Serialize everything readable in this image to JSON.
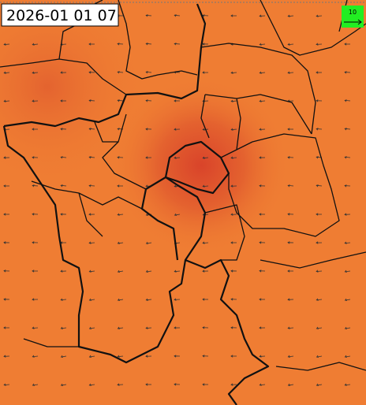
{
  "timestamp": "2026-01 01 07",
  "wind_legend": {
    "label": "10"
  }
}
